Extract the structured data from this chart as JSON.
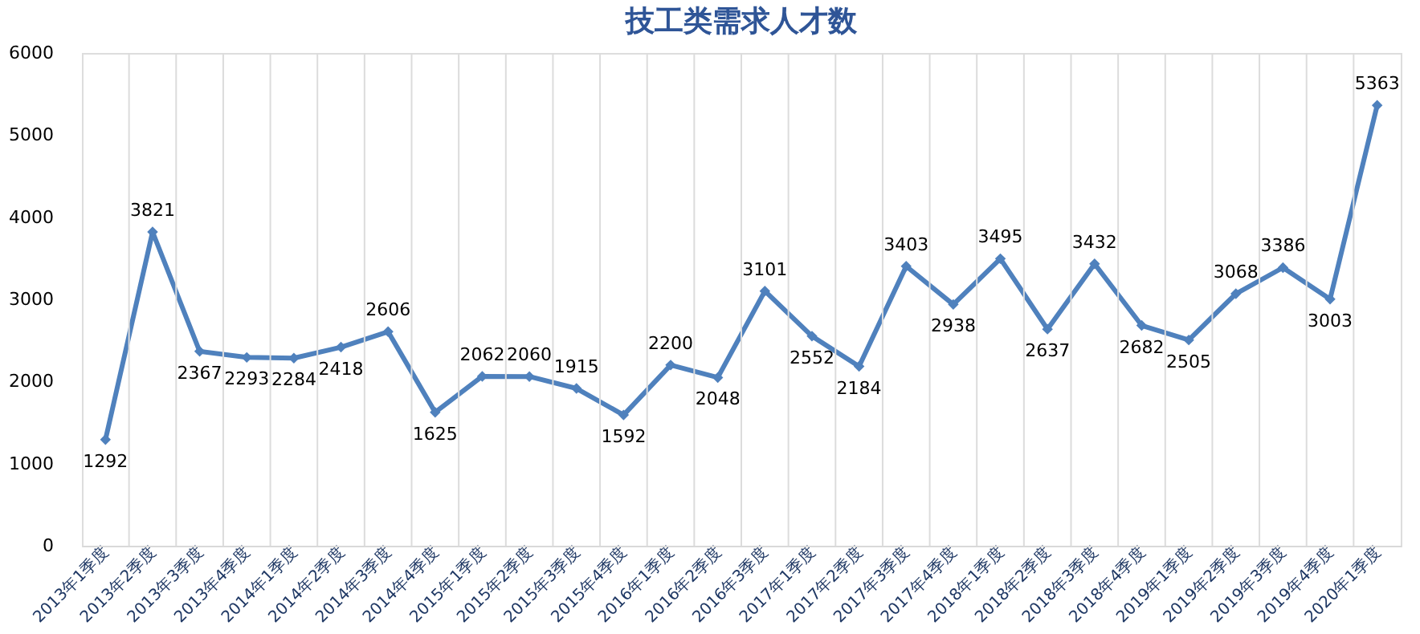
{
  "chart_data": {
    "type": "line",
    "title": "技工类需求人才数",
    "categories": [
      "2013年1季度",
      "2013年2季度",
      "2013年3季度",
      "2013年4季度",
      "2014年1季度",
      "2014年2季度",
      "2014年3季度",
      "2014年4季度",
      "2015年1季度",
      "2015年2季度",
      "2015年3季度",
      "2015年4季度",
      "2016年1季度",
      "2016年2季度",
      "2016年3季度",
      "2017年1季度",
      "2017年2季度",
      "2017年3季度",
      "2017年4季度",
      "2018年1季度",
      "2018年2季度",
      "2018年3季度",
      "2018年4季度",
      "2019年1季度",
      "2019年2季度",
      "2019年3季度",
      "2019年4季度",
      "2020年1季度"
    ],
    "series": [
      {
        "color": "#4f81bd",
        "values": [
          1292,
          3821,
          2367,
          2293,
          2284,
          2418,
          2606,
          1625,
          2062,
          2060,
          1915,
          1592,
          2200,
          2048,
          3101,
          2552,
          2184,
          3403,
          2938,
          3495,
          2637,
          3432,
          2682,
          2505,
          3068,
          3386,
          3003,
          5363
        ]
      }
    ],
    "ylim": [
      0,
      6000
    ],
    "yticks": [
      0,
      1000,
      2000,
      3000,
      4000,
      5000,
      6000
    ],
    "grid": "x",
    "marker": "diamond",
    "line_style": "solid",
    "data_labels": true
  }
}
